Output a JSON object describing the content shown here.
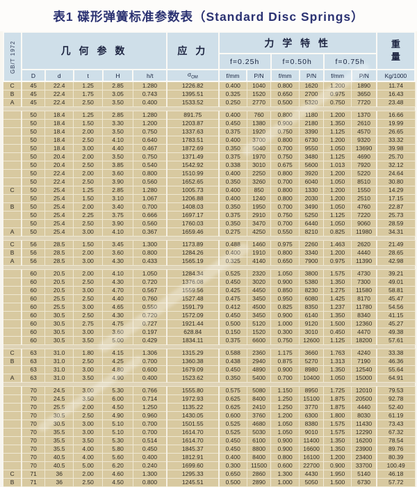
{
  "title": "表1 碟形弹簧标准参数表（Standard Disc Springs）",
  "standard_label": "GB/T 1972",
  "header": {
    "geometry": "几 何 参 数",
    "stress": "应 力",
    "mechanical": "力 学 特 性",
    "weight_top": "重",
    "weight_bottom": "量",
    "deflections": [
      "f=0.25h",
      "f=0.50h",
      "f=0.75h"
    ],
    "sigma_sub": "OM",
    "columns": [
      "D",
      "d",
      "t",
      "H",
      "h/t",
      "σ",
      "f/mm",
      "P/N",
      "f/mm",
      "P/N",
      "f/mm",
      "P/N",
      "Kg/1000"
    ]
  },
  "table_rows": [
    [
      "C",
      "45",
      "22.4",
      "1.25",
      "2.85",
      "1.280",
      "1226.82",
      "0.400",
      "1040",
      "0.800",
      "1620",
      "1.200",
      "1890",
      "11.74"
    ],
    [
      "B",
      "45",
      "22.4",
      "1.75",
      "3.05",
      "0.743",
      "1395.51",
      "0.325",
      "1520",
      "0.650",
      "2700",
      "0.975",
      "3650",
      "16.43"
    ],
    [
      "A",
      "45",
      "22.4",
      "2.50",
      "3.50",
      "0.400",
      "1533.52",
      "0.250",
      "2770",
      "0.500",
      "5320",
      "0.750",
      "7720",
      "23.48"
    ],
    "SEP",
    [
      "",
      "50",
      "18.4",
      "1.25",
      "2.85",
      "1.280",
      "891.75",
      "0.400",
      "760",
      "0.800",
      "1180",
      "1.200",
      "1370",
      "16.66"
    ],
    [
      "",
      "50",
      "18.4",
      "1.50",
      "3.30",
      "1.200",
      "1203.87",
      "0.450",
      "1380",
      "0.900",
      "2180",
      "1.350",
      "2610",
      "19.99"
    ],
    [
      "",
      "50",
      "18.4",
      "2.00",
      "3.50",
      "0.750",
      "1337.63",
      "0.375",
      "1920",
      "0.750",
      "3390",
      "1.125",
      "4570",
      "26.65"
    ],
    [
      "",
      "50",
      "18.4",
      "2.50",
      "4.10",
      "0.640",
      "1783.51",
      "0.400",
      "3700",
      "0.800",
      "6730",
      "1.200",
      "9320",
      "33.32"
    ],
    [
      "",
      "50",
      "18.4",
      "3.00",
      "4.40",
      "0.467",
      "1872.69",
      "0.350",
      "5040",
      "0.700",
      "9550",
      "1.050",
      "13690",
      "39.98"
    ],
    [
      "",
      "50",
      "20.4",
      "2.00",
      "3.50",
      "0.750",
      "1371.49",
      "0.375",
      "1970",
      "0.750",
      "3480",
      "1.125",
      "4690",
      "25.70"
    ],
    [
      "",
      "50",
      "20.4",
      "2.50",
      "3.85",
      "0.540",
      "1542.92",
      "0.338",
      "3010",
      "0.675",
      "5600",
      "1.013",
      "7920",
      "32.12"
    ],
    [
      "",
      "50",
      "22.4",
      "2.00",
      "3.60",
      "0.800",
      "1510.99",
      "0.400",
      "2250",
      "0.800",
      "3920",
      "1.200",
      "5220",
      "24.64"
    ],
    [
      "",
      "50",
      "22.4",
      "2.50",
      "3.90",
      "0.560",
      "1652.65",
      "0.350",
      "3260",
      "0.700",
      "6040",
      "1.050",
      "8510",
      "30.80"
    ],
    [
      "C",
      "50",
      "25.4",
      "1.25",
      "2.85",
      "1.280",
      "1005.73",
      "0.400",
      "850",
      "0.800",
      "1330",
      "1.200",
      "1550",
      "14.29"
    ],
    [
      "",
      "50",
      "25.4",
      "1.50",
      "3.10",
      "1.067",
      "1206.88",
      "0.400",
      "1240",
      "0.800",
      "2030",
      "1.200",
      "2510",
      "17.15"
    ],
    [
      "B",
      "50",
      "25.4",
      "2.00",
      "3.40",
      "0.700",
      "1408.03",
      "0.350",
      "1950",
      "0.700",
      "3490",
      "1.050",
      "4760",
      "22.87"
    ],
    [
      "",
      "50",
      "25.4",
      "2.25",
      "3.75",
      "0.666",
      "1697.17",
      "0.375",
      "2910",
      "0.750",
      "5250",
      "1.125",
      "7220",
      "25.73"
    ],
    [
      "",
      "50",
      "25.4",
      "2.50",
      "3.90",
      "0.560",
      "1760.03",
      "0.350",
      "3470",
      "0.700",
      "6440",
      "1.050",
      "9060",
      "28.59"
    ],
    [
      "A",
      "50",
      "25.4",
      "3.00",
      "4.10",
      "0.367",
      "1659.46",
      "0.275",
      "4250",
      "0.550",
      "8210",
      "0.825",
      "11980",
      "34.31"
    ],
    "SEP",
    [
      "C",
      "56",
      "28.5",
      "1.50",
      "3.45",
      "1.300",
      "1173.89",
      "0.488",
      "1460",
      "0.975",
      "2260",
      "1.463",
      "2620",
      "21.49"
    ],
    [
      "B",
      "56",
      "28.5",
      "2.00",
      "3.60",
      "0.800",
      "1284.26",
      "0.400",
      "1910",
      "0.800",
      "3340",
      "1.200",
      "4440",
      "28.65"
    ],
    [
      "A",
      "56",
      "28.5",
      "3.00",
      "4.30",
      "0.433",
      "1565.19",
      "0.325",
      "4140",
      "0.650",
      "7900",
      "0.975",
      "11390",
      "42.98"
    ],
    "SEP",
    [
      "",
      "60",
      "20.5",
      "2.00",
      "4.10",
      "1.050",
      "1284.34",
      "0.525",
      "2320",
      "1.050",
      "3800",
      "1.575",
      "4730",
      "39.21"
    ],
    [
      "",
      "60",
      "20.5",
      "2.50",
      "4.30",
      "0.720",
      "1376.08",
      "0.450",
      "3020",
      "0.900",
      "5380",
      "1.350",
      "7300",
      "49.01"
    ],
    [
      "",
      "60",
      "20.5",
      "3.00",
      "4.70",
      "0.567",
      "1559.56",
      "0.425",
      "4450",
      "0.850",
      "8230",
      "1.275",
      "11580",
      "58.81"
    ],
    [
      "",
      "60",
      "25.5",
      "2.50",
      "4.40",
      "0.760",
      "1527.48",
      "0.475",
      "3450",
      "0.950",
      "6080",
      "1.425",
      "8170",
      "45.47"
    ],
    [
      "",
      "60",
      "25.5",
      "3.00",
      "4.65",
      "0.550",
      "1591.79",
      "0.412",
      "4500",
      "0.825",
      "8350",
      "1.237",
      "11780",
      "54.56"
    ],
    [
      "",
      "60",
      "30.5",
      "2.50",
      "4.30",
      "0.720",
      "1572.09",
      "0.450",
      "3450",
      "0.900",
      "6140",
      "1.350",
      "8340",
      "41.15"
    ],
    [
      "",
      "60",
      "30.5",
      "2.75",
      "4.75",
      "0.727",
      "1921.44",
      "0.500",
      "5120",
      "1.000",
      "9120",
      "1.500",
      "12360",
      "45.27"
    ],
    [
      "",
      "60",
      "30.5",
      "3.00",
      "3.60",
      "0.197",
      "628.84",
      "0.150",
      "1520",
      "0.300",
      "3010",
      "0.450",
      "4470",
      "49.38"
    ],
    [
      "",
      "60",
      "30.5",
      "3.50",
      "5.00",
      "0.429",
      "1834.11",
      "0.375",
      "6600",
      "0.750",
      "12600",
      "1.125",
      "18200",
      "57.61"
    ],
    "SEP",
    [
      "C",
      "63",
      "31.0",
      "1.80",
      "4.15",
      "1.306",
      "1315.29",
      "0.588",
      "2360",
      "1.175",
      "3660",
      "1.763",
      "4240",
      "33.38"
    ],
    [
      "B",
      "63",
      "31.0",
      "2.50",
      "4.25",
      "0.700",
      "1360.38",
      "0.438",
      "2940",
      "0.875",
      "5270",
      "1.313",
      "7190",
      "46.36"
    ],
    [
      "",
      "63",
      "31.0",
      "3.00",
      "4.80",
      "0.600",
      "1679.09",
      "0.450",
      "4890",
      "0.900",
      "8980",
      "1.350",
      "12540",
      "55.64"
    ],
    [
      "A",
      "63",
      "31.0",
      "3.50",
      "4.90",
      "0.400",
      "1523.62",
      "0.350",
      "5400",
      "0.700",
      "10400",
      "1.050",
      "15000",
      "64.91"
    ],
    "SEP",
    [
      "",
      "70",
      "24.5",
      "3.00",
      "5.30",
      "0.766",
      "1555.80",
      "0.575",
      "5080",
      "1.150",
      "8950",
      "1.725",
      "12010",
      "79.53"
    ],
    [
      "",
      "70",
      "24.5",
      "3.50",
      "6.00",
      "0.714",
      "1972.93",
      "0.625",
      "8400",
      "1.250",
      "15100",
      "1.875",
      "20500",
      "92.78"
    ],
    [
      "",
      "70",
      "25.5",
      "2.00",
      "4.50",
      "1.250",
      "1135.22",
      "0.625",
      "2410",
      "1.250",
      "3770",
      "1.875",
      "4440",
      "52.40"
    ],
    [
      "",
      "70",
      "30.5",
      "2.50",
      "4.90",
      "0.960",
      "1430.05",
      "0.600",
      "3760",
      "1.200",
      "6300",
      "1.800",
      "8030",
      "61.19"
    ],
    [
      "",
      "70",
      "30.5",
      "3.00",
      "5.10",
      "0.700",
      "1501.55",
      "0.525",
      "4680",
      "1.050",
      "8380",
      "1.575",
      "11430",
      "73.43"
    ],
    [
      "",
      "70",
      "35.5",
      "3.00",
      "5.10",
      "0.700",
      "1614.70",
      "0.525",
      "5030",
      "1.050",
      "9010",
      "1.575",
      "12290",
      "67.32"
    ],
    [
      "",
      "70",
      "35.5",
      "3.50",
      "5.30",
      "0.514",
      "1614.70",
      "0.450",
      "6100",
      "0.900",
      "11400",
      "1.350",
      "16200",
      "78.54"
    ],
    [
      "",
      "70",
      "35.5",
      "4.00",
      "5.80",
      "0.450",
      "1845.37",
      "0.450",
      "8800",
      "0.900",
      "16600",
      "1.350",
      "23900",
      "89.76"
    ],
    [
      "",
      "70",
      "40.5",
      "4.00",
      "5.60",
      "0.400",
      "1812.91",
      "0.400",
      "8400",
      "0.800",
      "16100",
      "1.200",
      "23400",
      "80.39"
    ],
    [
      "",
      "70",
      "40.5",
      "5.00",
      "6.20",
      "0.240",
      "1699.60",
      "0.300",
      "11500",
      "0.600",
      "22700",
      "0.900",
      "33700",
      "100.49"
    ],
    [
      "C",
      "71",
      "36",
      "2.00",
      "4.60",
      "1.300",
      "1295.33",
      "0.650",
      "2860",
      "1.300",
      "4430",
      "1.950",
      "5140",
      "46.18"
    ],
    [
      "B",
      "71",
      "36",
      "2.50",
      "4.50",
      "0.800",
      "1245.51",
      "0.500",
      "2890",
      "1.000",
      "5050",
      "1.500",
      "6730",
      "57.72"
    ],
    [
      "A",
      "71",
      "36",
      "4.00",
      "5.60",
      "0.400",
      "1594.25",
      "0.400",
      "7400",
      "0.800",
      "14200",
      "1.200",
      "20500",
      "92.36"
    ]
  ]
}
